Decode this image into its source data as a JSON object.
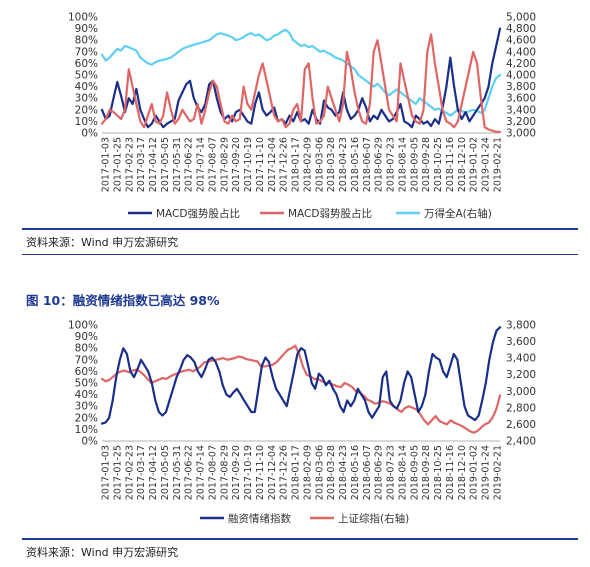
{
  "chart_data": [
    {
      "type": "line",
      "title": "",
      "xlabel": "",
      "ylabel": "",
      "x_tick_labels": [
        "2017-01-03",
        "2017-01-25",
        "2017-02-23",
        "2017-03-17",
        "2017-04-12",
        "2017-05-05",
        "2017-05-31",
        "2017-06-22",
        "2017-07-14",
        "2017-08-07",
        "2017-08-29",
        "2017-09-20",
        "2017-10-19",
        "2017-11-10",
        "2017-12-04",
        "2017-12-26",
        "2018-01-17",
        "2018-02-09",
        "2018-03-06",
        "2018-03-28",
        "2018-04-23",
        "2018-05-16",
        "2018-06-07",
        "2018-06-29",
        "2018-07-23",
        "2018-08-14",
        "2018-09-05",
        "2018-09-28",
        "2018-10-25",
        "2018-11-16",
        "2018-12-10",
        "2019-01-02",
        "2019-01-24",
        "2019-02-21"
      ],
      "y_left": {
        "ticks": [
          "0%",
          "10%",
          "20%",
          "30%",
          "40%",
          "50%",
          "60%",
          "70%",
          "80%",
          "90%",
          "100%"
        ],
        "ylim": [
          0,
          100
        ]
      },
      "y_right": {
        "ticks": [
          "3,000",
          "3,200",
          "3,400",
          "3,600",
          "3,800",
          "4,000",
          "4,200",
          "4,400",
          "4,600",
          "4,800",
          "5,000"
        ],
        "ylim": [
          3000,
          5000
        ]
      },
      "legend_position": "bottom",
      "series": [
        {
          "name": "MACD强势股占比",
          "axis": "left",
          "color": "#1a2f8a",
          "values": [
            20,
            12,
            15,
            30,
            44,
            32,
            18,
            30,
            25,
            38,
            20,
            12,
            5,
            8,
            15,
            10,
            5,
            8,
            10,
            12,
            28,
            35,
            42,
            45,
            30,
            22,
            18,
            25,
            42,
            45,
            30,
            18,
            12,
            15,
            10,
            18,
            20,
            15,
            10,
            8,
            25,
            35,
            20,
            15,
            18,
            22,
            10,
            12,
            8,
            15,
            10,
            18,
            10,
            12,
            8,
            20,
            12,
            8,
            28,
            22,
            20,
            15,
            18,
            35,
            20,
            12,
            15,
            20,
            30,
            22,
            10,
            15,
            12,
            20,
            15,
            10,
            12,
            18,
            25,
            10,
            8,
            5,
            15,
            12,
            8,
            10,
            6,
            12,
            8,
            22,
            40,
            65,
            40,
            20,
            12,
            18,
            10,
            15,
            20,
            25,
            30,
            40,
            60,
            75,
            90
          ]
        },
        {
          "name": "MACD弱势股占比",
          "axis": "left",
          "color": "#e06666",
          "values": [
            8,
            12,
            20,
            18,
            15,
            12,
            20,
            55,
            40,
            25,
            10,
            5,
            15,
            25,
            10,
            8,
            15,
            35,
            20,
            8,
            12,
            20,
            15,
            10,
            12,
            25,
            8,
            20,
            35,
            45,
            40,
            25,
            10,
            8,
            15,
            10,
            12,
            40,
            25,
            20,
            35,
            50,
            60,
            45,
            30,
            15,
            10,
            12,
            5,
            8,
            20,
            25,
            10,
            55,
            60,
            30,
            8,
            10,
            15,
            40,
            30,
            20,
            10,
            25,
            70,
            55,
            35,
            20,
            10,
            8,
            25,
            70,
            80,
            60,
            40,
            20,
            15,
            10,
            60,
            45,
            30,
            15,
            10,
            8,
            20,
            70,
            85,
            60,
            40,
            20,
            10,
            8,
            5,
            10,
            25,
            40,
            55,
            70,
            60,
            30,
            5,
            3,
            2,
            1,
            1
          ]
        },
        {
          "name": "万得全A(右轴)",
          "axis": "right",
          "color": "#5ed0f5",
          "values": [
            4350,
            4250,
            4300,
            4380,
            4450,
            4420,
            4500,
            4480,
            4450,
            4420,
            4300,
            4250,
            4200,
            4180,
            4220,
            4250,
            4260,
            4280,
            4300,
            4350,
            4400,
            4450,
            4480,
            4500,
            4520,
            4540,
            4560,
            4580,
            4600,
            4650,
            4700,
            4720,
            4700,
            4680,
            4650,
            4600,
            4620,
            4650,
            4700,
            4720,
            4680,
            4700,
            4650,
            4600,
            4620,
            4680,
            4700,
            4750,
            4780,
            4720,
            4600,
            4550,
            4500,
            4520,
            4480,
            4500,
            4450,
            4400,
            4420,
            4380,
            4350,
            4300,
            4280,
            4250,
            4200,
            4150,
            4100,
            4000,
            3950,
            3900,
            3850,
            3800,
            3850,
            3780,
            3700,
            3650,
            3700,
            3750,
            3700,
            3650,
            3600,
            3550,
            3500,
            3600,
            3550,
            3500,
            3450,
            3400,
            3420,
            3380,
            3350,
            3300,
            3350,
            3400,
            3380,
            3350,
            3380,
            3400,
            3380,
            3350,
            3400,
            3600,
            3800,
            3950,
            4000
          ]
        }
      ]
    },
    {
      "type": "line",
      "title": "",
      "xlabel": "",
      "ylabel": "",
      "x_tick_labels": [
        "2017-01-03",
        "2017-01-25",
        "2017-02-23",
        "2017-03-17",
        "2017-04-12",
        "2017-05-05",
        "2017-05-31",
        "2017-06-22",
        "2017-07-14",
        "2017-08-07",
        "2017-08-29",
        "2017-09-20",
        "2017-10-19",
        "2017-11-10",
        "2017-12-04",
        "2017-12-26",
        "2018-01-17",
        "2018-02-09",
        "2018-03-06",
        "2018-03-28",
        "2018-04-23",
        "2018-05-16",
        "2018-06-07",
        "2018-06-29",
        "2018-07-23",
        "2018-08-14",
        "2018-09-05",
        "2018-09-28",
        "2018-10-25",
        "2018-11-16",
        "2018-12-10",
        "2019-01-02",
        "2019-01-24",
        "2019-02-21"
      ],
      "y_left": {
        "ticks": [
          "0%",
          "10%",
          "20%",
          "30%",
          "40%",
          "50%",
          "60%",
          "70%",
          "80%",
          "90%",
          "100%"
        ],
        "ylim": [
          0,
          100
        ]
      },
      "y_right": {
        "ticks": [
          "2,400",
          "2,600",
          "2,800",
          "3,000",
          "3,200",
          "3,400",
          "3,600",
          "3,800"
        ],
        "ylim": [
          2400,
          3800
        ]
      },
      "legend_position": "bottom",
      "series": [
        {
          "name": "融资情绪指数",
          "axis": "left",
          "color": "#1a2f8a",
          "values": [
            15,
            16,
            20,
            35,
            55,
            70,
            80,
            75,
            60,
            55,
            62,
            70,
            65,
            60,
            50,
            35,
            25,
            22,
            25,
            35,
            45,
            55,
            62,
            70,
            74,
            72,
            68,
            60,
            55,
            62,
            70,
            72,
            68,
            60,
            48,
            40,
            38,
            42,
            45,
            40,
            35,
            30,
            25,
            25,
            45,
            65,
            72,
            68,
            55,
            45,
            40,
            35,
            30,
            45,
            60,
            75,
            80,
            78,
            65,
            50,
            45,
            58,
            55,
            48,
            52,
            45,
            40,
            30,
            25,
            35,
            30,
            35,
            45,
            40,
            35,
            25,
            20,
            25,
            30,
            55,
            60,
            35,
            30,
            28,
            35,
            50,
            60,
            55,
            40,
            25,
            30,
            40,
            60,
            75,
            72,
            70,
            60,
            55,
            65,
            75,
            70,
            50,
            30,
            22,
            20,
            18,
            22,
            35,
            50,
            70,
            85,
            95,
            98
          ]
        },
        {
          "name": "上证综指(右轴)",
          "axis": "right",
          "color": "#e06666",
          "values": [
            3150,
            3120,
            3140,
            3180,
            3220,
            3240,
            3250,
            3230,
            3250,
            3260,
            3240,
            3200,
            3150,
            3100,
            3120,
            3140,
            3160,
            3150,
            3180,
            3200,
            3220,
            3240,
            3250,
            3260,
            3240,
            3270,
            3300,
            3350,
            3360,
            3370,
            3380,
            3390,
            3400,
            3380,
            3390,
            3400,
            3420,
            3410,
            3390,
            3380,
            3370,
            3360,
            3300,
            3300,
            3310,
            3320,
            3350,
            3400,
            3450,
            3500,
            3520,
            3550,
            3450,
            3300,
            3200,
            3180,
            3150,
            3150,
            3120,
            3100,
            3100,
            3080,
            3060,
            3050,
            3100,
            3080,
            3050,
            3000,
            2980,
            2950,
            2900,
            2880,
            2850,
            2860,
            2880,
            2870,
            2850,
            2820,
            2780,
            2750,
            2800,
            2820,
            2800,
            2780,
            2720,
            2650,
            2600,
            2650,
            2700,
            2640,
            2620,
            2600,
            2650,
            2620,
            2600,
            2580,
            2550,
            2520,
            2500,
            2520,
            2560,
            2600,
            2620,
            2680,
            2780,
            2950
          ]
        }
      ]
    }
  ],
  "chart1_source": "资料来源：Wind  申万宏源研究",
  "figure10_title": "图 10：融资情绪指数已高达 98%",
  "chart2_source": "资料来源：Wind  申万宏源研究"
}
